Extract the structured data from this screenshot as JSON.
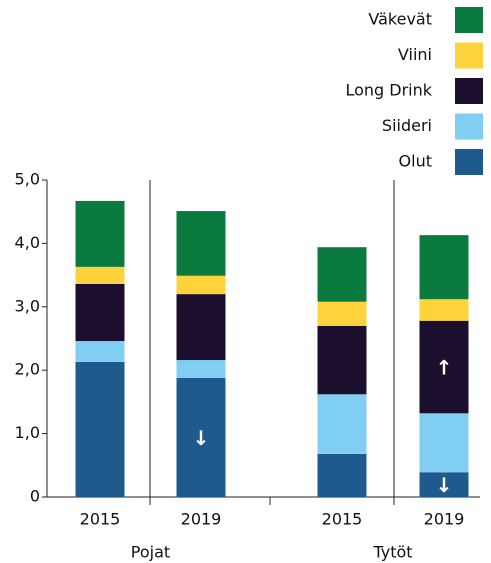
{
  "chart_data": {
    "type": "stacked_bar",
    "categories": [
      "2015",
      "2019",
      "2015",
      "2019"
    ],
    "groups": [
      "Pojat",
      "Tytöt"
    ],
    "series": [
      {
        "name": "Olut",
        "color": "#1f5a8f",
        "values": [
          2.13,
          1.88,
          0.68,
          0.39
        ],
        "annotations": [
          null,
          "↓",
          null,
          "↓"
        ]
      },
      {
        "name": "Siideri",
        "color": "#80cff2",
        "values": [
          0.33,
          0.28,
          0.94,
          0.93
        ]
      },
      {
        "name": "Long Drink",
        "color": "#1c0f2e",
        "values": [
          0.9,
          1.04,
          1.08,
          1.46
        ],
        "annotations": [
          null,
          null,
          null,
          "↑"
        ]
      },
      {
        "name": "Viini",
        "color": "#fdd23a",
        "values": [
          0.27,
          0.29,
          0.38,
          0.34
        ]
      },
      {
        "name": "Väkevät",
        "color": "#0b7a3e",
        "values": [
          1.04,
          1.02,
          0.86,
          1.01
        ]
      }
    ],
    "ylim": [
      0,
      5
    ],
    "yticks": [
      0,
      {
        "value": 1,
        "label": "1,0"
      },
      {
        "value": 2,
        "label": "2,0"
      },
      {
        "value": 3,
        "label": "3,0"
      },
      {
        "value": 4,
        "label": "4,0"
      },
      {
        "value": 5,
        "label": "5,0"
      }
    ],
    "grid": false,
    "legend": "top-right"
  }
}
